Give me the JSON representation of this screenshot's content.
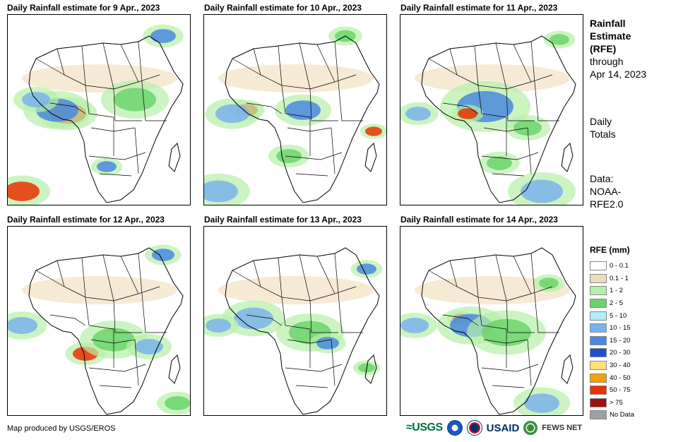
{
  "panels": [
    {
      "title": "Daily Rainfall estimate for 9 Apr., 2023"
    },
    {
      "title": "Daily Rainfall estimate for 10 Apr., 2023"
    },
    {
      "title": "Daily Rainfall estimate for 11 Apr., 2023"
    },
    {
      "title": "Daily Rainfall estimate for 12 Apr., 2023"
    },
    {
      "title": "Daily Rainfall estimate for 13 Apr., 2023"
    },
    {
      "title": "Daily Rainfall estimate for 14 Apr., 2023"
    }
  ],
  "side": {
    "title_line1": "Rainfall",
    "title_line2": "Estimate",
    "title_line3": "(RFE)",
    "through_label": "through",
    "through_date": "Apr 14, 2023",
    "totals_line1": "Daily",
    "totals_line2": "Totals",
    "data_line1": "Data:",
    "data_line2": "NOAA-",
    "data_line3": "RFE2.0"
  },
  "legend": {
    "title": "RFE (mm)",
    "items": [
      {
        "label": "0 - 0.1",
        "color": "#ffffff"
      },
      {
        "label": "0.1 - 1",
        "color": "#f0dcb9"
      },
      {
        "label": "1 - 2",
        "color": "#b6f0a8"
      },
      {
        "label": "2 - 5",
        "color": "#6bd36b"
      },
      {
        "label": "5 - 10",
        "color": "#b3edf5"
      },
      {
        "label": "10 - 15",
        "color": "#7ab3ea"
      },
      {
        "label": "15 - 20",
        "color": "#4a88dd"
      },
      {
        "label": "20 - 30",
        "color": "#1e4fcf"
      },
      {
        "label": "30 - 40",
        "color": "#ffe07a"
      },
      {
        "label": "40 - 50",
        "color": "#f5a000"
      },
      {
        "label": "50 - 75",
        "color": "#e83200"
      },
      {
        "label": "> 75",
        "color": "#9c1010"
      },
      {
        "label": "No Data",
        "color": "#a0a0a0"
      }
    ]
  },
  "footer": {
    "credit": "Map produced by USGS/EROS"
  },
  "logos": {
    "usgs": "≈USGS",
    "usaid": "USAID",
    "fews": "FEWS NET"
  }
}
